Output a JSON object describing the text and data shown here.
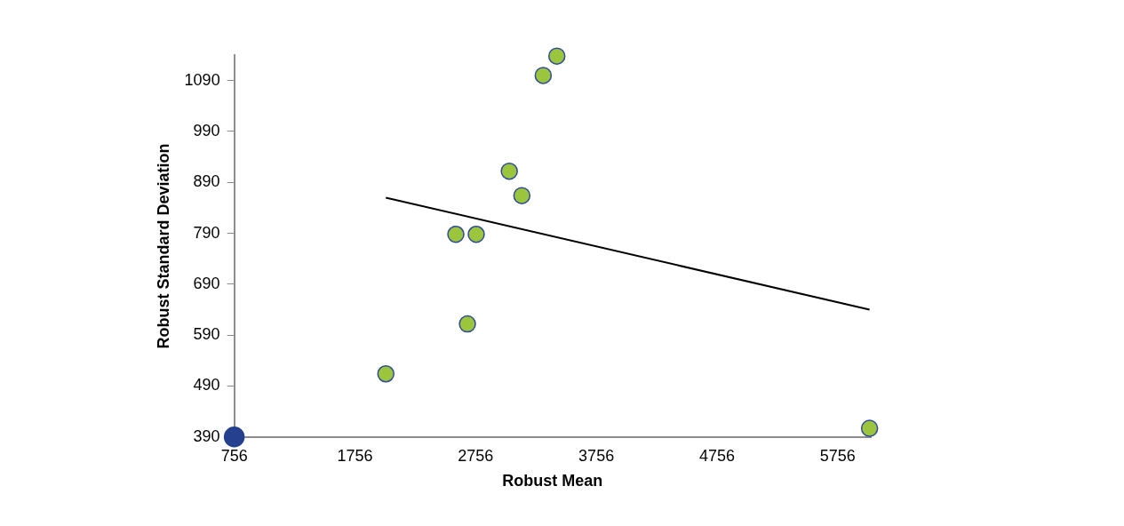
{
  "chart_data": {
    "type": "scatter",
    "xlabel": "Robust Mean",
    "ylabel": "Robust Standard Deviation",
    "xlim": [
      756,
      6030
    ],
    "xticks": [
      756,
      1756,
      2756,
      3756,
      4756,
      5756
    ],
    "ylim": [
      390,
      1140
    ],
    "yticks": [
      390,
      490,
      590,
      690,
      790,
      890,
      990,
      1090
    ],
    "grid": false,
    "legend": false,
    "marker": "circle",
    "series": [
      {
        "type": "line",
        "color": "#000000",
        "x": [
          2012,
          6020
        ],
        "values": [
          860,
          640
        ],
        "marker": "none"
      },
      {
        "type": "scatter",
        "color": "#9bc53d",
        "x": [
          2012,
          2592,
          2761,
          2688,
          3035,
          3139,
          3316,
          3429,
          6020
        ],
        "values": [
          514,
          788,
          788,
          612,
          912,
          864,
          1100,
          1138,
          407
        ]
      },
      {
        "type": "scatter",
        "color": "#24408e",
        "x": [
          756
        ],
        "values": [
          390
        ]
      }
    ]
  }
}
